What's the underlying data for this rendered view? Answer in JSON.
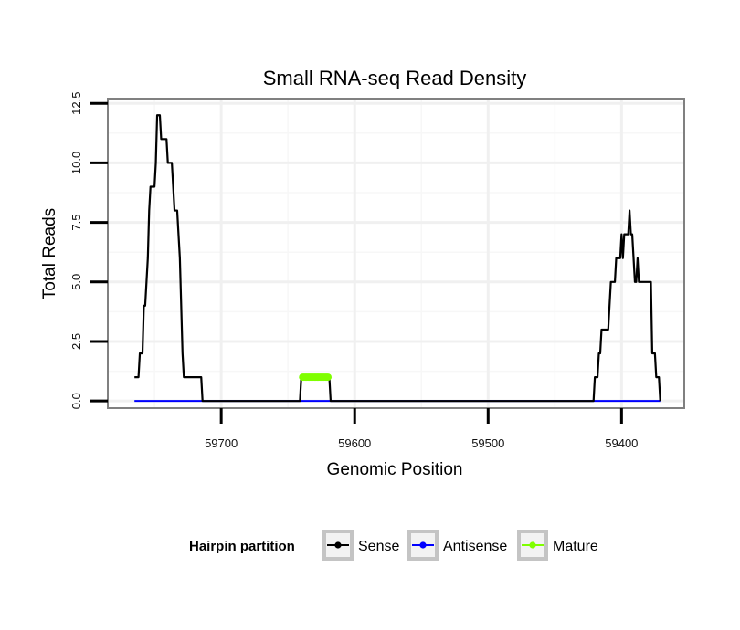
{
  "chart_data": {
    "type": "line",
    "title": "Small RNA-seq Read Density",
    "xlabel": "Genomic Position",
    "ylabel": "Total Reads",
    "xlim": [
      59785,
      59353
    ],
    "ylim": [
      -0.3,
      12.7
    ],
    "x_reversed": true,
    "grid": true,
    "x_ticks": [
      59700,
      59600,
      59500,
      59400
    ],
    "x_tick_labels": [
      "59700",
      "59600",
      "59500",
      "59400"
    ],
    "y_ticks": [
      0,
      2.5,
      5,
      7.5,
      10,
      12.5
    ],
    "y_tick_labels": [
      "0.0",
      "2.5",
      "5.0",
      "7.5",
      "10.0",
      "12.5"
    ],
    "legend": {
      "title": "Hairpin partition",
      "position": "bottom",
      "entries": [
        "Sense",
        "Antisense",
        "Mature"
      ]
    },
    "series": [
      {
        "name": "Sense",
        "color": "#000000",
        "x": [
          59765,
          59764,
          59763,
          59762,
          59761,
          59760,
          59759,
          59758,
          59757,
          59756,
          59755,
          59754,
          59753,
          59752,
          59751,
          59750,
          59749,
          59748,
          59747,
          59746,
          59745,
          59744,
          59743,
          59742,
          59741,
          59740,
          59739,
          59738,
          59737,
          59736,
          59735,
          59734,
          59733,
          59732,
          59731,
          59730,
          59729,
          59728,
          59727,
          59726,
          59725,
          59724,
          59723,
          59722,
          59721,
          59720,
          59719,
          59718,
          59717,
          59716,
          59715,
          59714,
          59713,
          59712,
          59711,
          59710,
          59709,
          59708,
          59707,
          59706,
          59705,
          59704,
          59703,
          59702,
          59701,
          59700,
          59650,
          59641,
          59640,
          59639,
          59620,
          59619,
          59618,
          59600,
          59550,
          59500,
          59450,
          59422,
          59421,
          59420,
          59419,
          59418,
          59417,
          59416,
          59415,
          59414,
          59413,
          59412,
          59411,
          59410,
          59409,
          59408,
          59407,
          59406,
          59405,
          59404,
          59403,
          59402,
          59401,
          59400,
          59399,
          59398,
          59397,
          59396,
          59395,
          59394,
          59393,
          59392,
          59391,
          59390,
          59389,
          59388,
          59387,
          59386,
          59385,
          59384,
          59383,
          59382,
          59381,
          59380,
          59379,
          59378,
          59377,
          59376,
          59375,
          59374,
          59373,
          59372,
          59371
        ],
        "y": [
          1,
          1,
          1,
          1,
          2,
          2,
          2,
          4,
          4,
          5,
          6,
          8,
          9,
          9,
          9,
          9,
          10,
          12,
          12,
          12,
          11,
          11,
          11,
          11,
          11,
          10,
          10,
          10,
          10,
          9,
          8,
          8,
          8,
          7,
          6,
          4,
          2,
          1,
          1,
          1,
          1,
          1,
          1,
          1,
          1,
          1,
          1,
          1,
          1,
          1,
          1,
          0,
          0,
          0,
          0,
          0,
          0,
          0,
          0,
          0,
          0,
          0,
          0,
          0,
          0,
          0,
          0,
          0,
          1,
          1,
          1,
          1,
          0,
          0,
          0,
          0,
          0,
          0,
          0,
          1,
          1,
          1,
          2,
          2,
          3,
          3,
          3,
          3,
          3,
          3,
          4,
          5,
          5,
          5,
          5,
          6,
          6,
          6,
          6,
          7,
          6,
          7,
          7,
          7,
          7,
          8,
          7,
          7,
          6,
          5,
          5,
          6,
          5,
          5,
          5,
          5,
          5,
          5,
          5,
          5,
          5,
          5,
          2,
          2,
          2,
          1,
          1,
          1,
          0
        ]
      },
      {
        "name": "Antisense",
        "color": "#0000ff",
        "x": [
          59765,
          59371
        ],
        "y": [
          0,
          0
        ]
      },
      {
        "name": "Mature",
        "color": "#7fff00",
        "x": [
          59639,
          59638,
          59637,
          59636,
          59635,
          59634,
          59633,
          59632,
          59631,
          59630,
          59629,
          59628,
          59627,
          59626,
          59625,
          59624,
          59623,
          59622,
          59621,
          59620
        ],
        "y": [
          1,
          1,
          1,
          1,
          1,
          1,
          1,
          1,
          1,
          1,
          1,
          1,
          1,
          1,
          1,
          1,
          1,
          1,
          1,
          1
        ]
      }
    ]
  }
}
